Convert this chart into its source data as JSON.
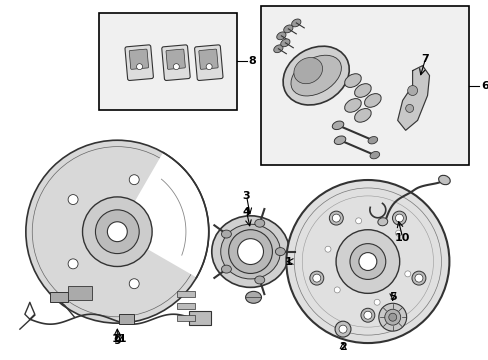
{
  "bg_color": "#ffffff",
  "fig_width": 4.89,
  "fig_height": 3.6,
  "dpi": 100,
  "line_color": "#000000",
  "text_color": "#000000",
  "gray_fill": "#e8e8e8",
  "dark_line": "#333333",
  "mid_gray": "#888888",
  "light_gray": "#cccccc",
  "box_fill": "#f0f0f0",
  "font_size": 8
}
